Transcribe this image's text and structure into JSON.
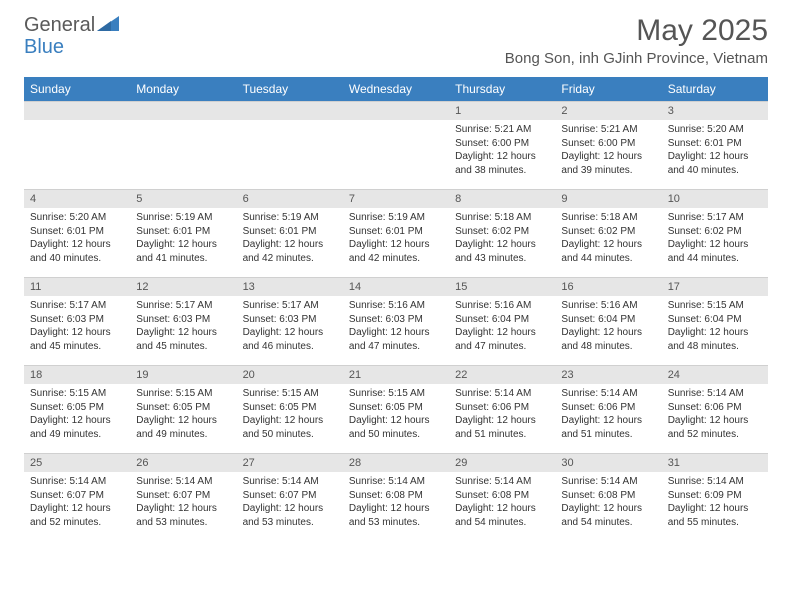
{
  "logo": {
    "general": "General",
    "blue": "Blue"
  },
  "header": {
    "month_title": "May 2025",
    "location": "Bong Son, inh GJinh Province, Vietnam"
  },
  "colors": {
    "header_bg": "#3a7fbf",
    "header_text": "#ffffff",
    "daynum_bg": "#e6e6e6",
    "text": "#333333",
    "title_text": "#555555"
  },
  "day_headers": [
    "Sunday",
    "Monday",
    "Tuesday",
    "Wednesday",
    "Thursday",
    "Friday",
    "Saturday"
  ],
  "weeks": [
    [
      null,
      null,
      null,
      null,
      {
        "n": "1",
        "sunrise": "5:21 AM",
        "sunset": "6:00 PM",
        "daylight": "12 hours and 38 minutes."
      },
      {
        "n": "2",
        "sunrise": "5:21 AM",
        "sunset": "6:00 PM",
        "daylight": "12 hours and 39 minutes."
      },
      {
        "n": "3",
        "sunrise": "5:20 AM",
        "sunset": "6:01 PM",
        "daylight": "12 hours and 40 minutes."
      }
    ],
    [
      {
        "n": "4",
        "sunrise": "5:20 AM",
        "sunset": "6:01 PM",
        "daylight": "12 hours and 40 minutes."
      },
      {
        "n": "5",
        "sunrise": "5:19 AM",
        "sunset": "6:01 PM",
        "daylight": "12 hours and 41 minutes."
      },
      {
        "n": "6",
        "sunrise": "5:19 AM",
        "sunset": "6:01 PM",
        "daylight": "12 hours and 42 minutes."
      },
      {
        "n": "7",
        "sunrise": "5:19 AM",
        "sunset": "6:01 PM",
        "daylight": "12 hours and 42 minutes."
      },
      {
        "n": "8",
        "sunrise": "5:18 AM",
        "sunset": "6:02 PM",
        "daylight": "12 hours and 43 minutes."
      },
      {
        "n": "9",
        "sunrise": "5:18 AM",
        "sunset": "6:02 PM",
        "daylight": "12 hours and 44 minutes."
      },
      {
        "n": "10",
        "sunrise": "5:17 AM",
        "sunset": "6:02 PM",
        "daylight": "12 hours and 44 minutes."
      }
    ],
    [
      {
        "n": "11",
        "sunrise": "5:17 AM",
        "sunset": "6:03 PM",
        "daylight": "12 hours and 45 minutes."
      },
      {
        "n": "12",
        "sunrise": "5:17 AM",
        "sunset": "6:03 PM",
        "daylight": "12 hours and 45 minutes."
      },
      {
        "n": "13",
        "sunrise": "5:17 AM",
        "sunset": "6:03 PM",
        "daylight": "12 hours and 46 minutes."
      },
      {
        "n": "14",
        "sunrise": "5:16 AM",
        "sunset": "6:03 PM",
        "daylight": "12 hours and 47 minutes."
      },
      {
        "n": "15",
        "sunrise": "5:16 AM",
        "sunset": "6:04 PM",
        "daylight": "12 hours and 47 minutes."
      },
      {
        "n": "16",
        "sunrise": "5:16 AM",
        "sunset": "6:04 PM",
        "daylight": "12 hours and 48 minutes."
      },
      {
        "n": "17",
        "sunrise": "5:15 AM",
        "sunset": "6:04 PM",
        "daylight": "12 hours and 48 minutes."
      }
    ],
    [
      {
        "n": "18",
        "sunrise": "5:15 AM",
        "sunset": "6:05 PM",
        "daylight": "12 hours and 49 minutes."
      },
      {
        "n": "19",
        "sunrise": "5:15 AM",
        "sunset": "6:05 PM",
        "daylight": "12 hours and 49 minutes."
      },
      {
        "n": "20",
        "sunrise": "5:15 AM",
        "sunset": "6:05 PM",
        "daylight": "12 hours and 50 minutes."
      },
      {
        "n": "21",
        "sunrise": "5:15 AM",
        "sunset": "6:05 PM",
        "daylight": "12 hours and 50 minutes."
      },
      {
        "n": "22",
        "sunrise": "5:14 AM",
        "sunset": "6:06 PM",
        "daylight": "12 hours and 51 minutes."
      },
      {
        "n": "23",
        "sunrise": "5:14 AM",
        "sunset": "6:06 PM",
        "daylight": "12 hours and 51 minutes."
      },
      {
        "n": "24",
        "sunrise": "5:14 AM",
        "sunset": "6:06 PM",
        "daylight": "12 hours and 52 minutes."
      }
    ],
    [
      {
        "n": "25",
        "sunrise": "5:14 AM",
        "sunset": "6:07 PM",
        "daylight": "12 hours and 52 minutes."
      },
      {
        "n": "26",
        "sunrise": "5:14 AM",
        "sunset": "6:07 PM",
        "daylight": "12 hours and 53 minutes."
      },
      {
        "n": "27",
        "sunrise": "5:14 AM",
        "sunset": "6:07 PM",
        "daylight": "12 hours and 53 minutes."
      },
      {
        "n": "28",
        "sunrise": "5:14 AM",
        "sunset": "6:08 PM",
        "daylight": "12 hours and 53 minutes."
      },
      {
        "n": "29",
        "sunrise": "5:14 AM",
        "sunset": "6:08 PM",
        "daylight": "12 hours and 54 minutes."
      },
      {
        "n": "30",
        "sunrise": "5:14 AM",
        "sunset": "6:08 PM",
        "daylight": "12 hours and 54 minutes."
      },
      {
        "n": "31",
        "sunrise": "5:14 AM",
        "sunset": "6:09 PM",
        "daylight": "12 hours and 55 minutes."
      }
    ]
  ],
  "labels": {
    "sunrise_prefix": "Sunrise: ",
    "sunset_prefix": "Sunset: ",
    "daylight_prefix": "Daylight: "
  }
}
